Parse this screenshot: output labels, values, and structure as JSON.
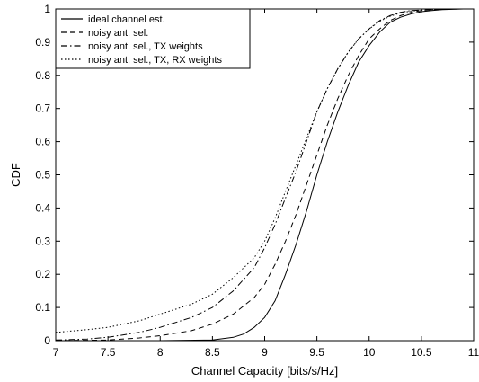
{
  "chart_data": {
    "type": "line",
    "title": "",
    "xlabel": "Channel Capacity [bits/s/Hz]",
    "ylabel": "CDF",
    "xlim": [
      7,
      11
    ],
    "ylim": [
      0,
      1
    ],
    "xticks": [
      7,
      7.5,
      8,
      8.5,
      9,
      9.5,
      10,
      10.5,
      11
    ],
    "xtick_labels": [
      "7",
      "7.5",
      "8",
      "8.5",
      "9",
      "9.5",
      "10",
      "10.5",
      "11"
    ],
    "yticks": [
      0,
      0.1,
      0.2,
      0.3,
      0.4,
      0.5,
      0.6,
      0.7,
      0.8,
      0.9,
      1
    ],
    "ytick_labels": [
      "0",
      "0.1",
      "0.2",
      "0.3",
      "0.4",
      "0.5",
      "0.6",
      "0.7",
      "0.8",
      "0.9",
      "1"
    ],
    "grid": false,
    "legend_position": "top-left",
    "series": [
      {
        "name": "ideal channel est.",
        "style": "solid",
        "x": [
          7.0,
          7.5,
          8.0,
          8.5,
          8.7,
          8.8,
          8.9,
          9.0,
          9.1,
          9.2,
          9.3,
          9.4,
          9.5,
          9.6,
          9.7,
          9.8,
          9.9,
          10.0,
          10.1,
          10.2,
          10.3,
          10.4,
          10.5,
          10.6,
          10.7,
          10.8,
          10.9,
          11.0
        ],
        "y": [
          0.0,
          0.0,
          0.0,
          0.002,
          0.01,
          0.02,
          0.04,
          0.07,
          0.12,
          0.2,
          0.29,
          0.39,
          0.5,
          0.6,
          0.69,
          0.77,
          0.84,
          0.89,
          0.93,
          0.96,
          0.975,
          0.985,
          0.992,
          0.995,
          0.998,
          0.999,
          1.0,
          1.0
        ]
      },
      {
        "name": "noisy ant. sel.",
        "style": "dashed",
        "x": [
          7.0,
          7.5,
          7.8,
          8.0,
          8.3,
          8.5,
          8.7,
          8.9,
          9.0,
          9.1,
          9.2,
          9.3,
          9.4,
          9.5,
          9.6,
          9.7,
          9.8,
          9.9,
          10.0,
          10.1,
          10.2,
          10.3,
          10.4,
          10.5,
          10.6,
          10.8,
          11.0
        ],
        "y": [
          0.0,
          0.002,
          0.008,
          0.015,
          0.03,
          0.05,
          0.08,
          0.13,
          0.17,
          0.23,
          0.3,
          0.38,
          0.47,
          0.56,
          0.65,
          0.73,
          0.8,
          0.86,
          0.91,
          0.94,
          0.965,
          0.98,
          0.99,
          0.995,
          0.998,
          1.0,
          1.0
        ]
      },
      {
        "name": "noisy ant. sel., TX weights",
        "style": "dashdot",
        "x": [
          7.0,
          7.3,
          7.5,
          7.8,
          8.0,
          8.3,
          8.5,
          8.7,
          8.9,
          9.0,
          9.1,
          9.2,
          9.3,
          9.4,
          9.5,
          9.6,
          9.7,
          9.8,
          9.9,
          10.0,
          10.1,
          10.2,
          10.3,
          10.4,
          10.6,
          10.8,
          11.0
        ],
        "y": [
          0.002,
          0.005,
          0.01,
          0.025,
          0.04,
          0.07,
          0.1,
          0.15,
          0.22,
          0.28,
          0.35,
          0.43,
          0.51,
          0.6,
          0.69,
          0.76,
          0.82,
          0.87,
          0.91,
          0.94,
          0.965,
          0.98,
          0.99,
          0.995,
          0.998,
          1.0,
          1.0
        ]
      },
      {
        "name": "noisy ant. sel., TX, RX weights",
        "style": "dotted",
        "x": [
          7.0,
          7.3,
          7.5,
          7.8,
          8.0,
          8.3,
          8.5,
          8.7,
          8.9,
          9.0,
          9.1,
          9.2,
          9.3,
          9.4,
          9.5,
          9.6,
          9.7,
          9.8,
          9.9,
          10.0,
          10.1,
          10.2,
          10.3,
          10.4,
          10.6,
          10.8,
          11.0
        ],
        "y": [
          0.025,
          0.033,
          0.04,
          0.06,
          0.08,
          0.11,
          0.14,
          0.19,
          0.25,
          0.3,
          0.37,
          0.45,
          0.53,
          0.61,
          0.69,
          0.76,
          0.82,
          0.87,
          0.91,
          0.94,
          0.963,
          0.978,
          0.988,
          0.994,
          0.998,
          1.0,
          1.0
        ]
      }
    ]
  }
}
